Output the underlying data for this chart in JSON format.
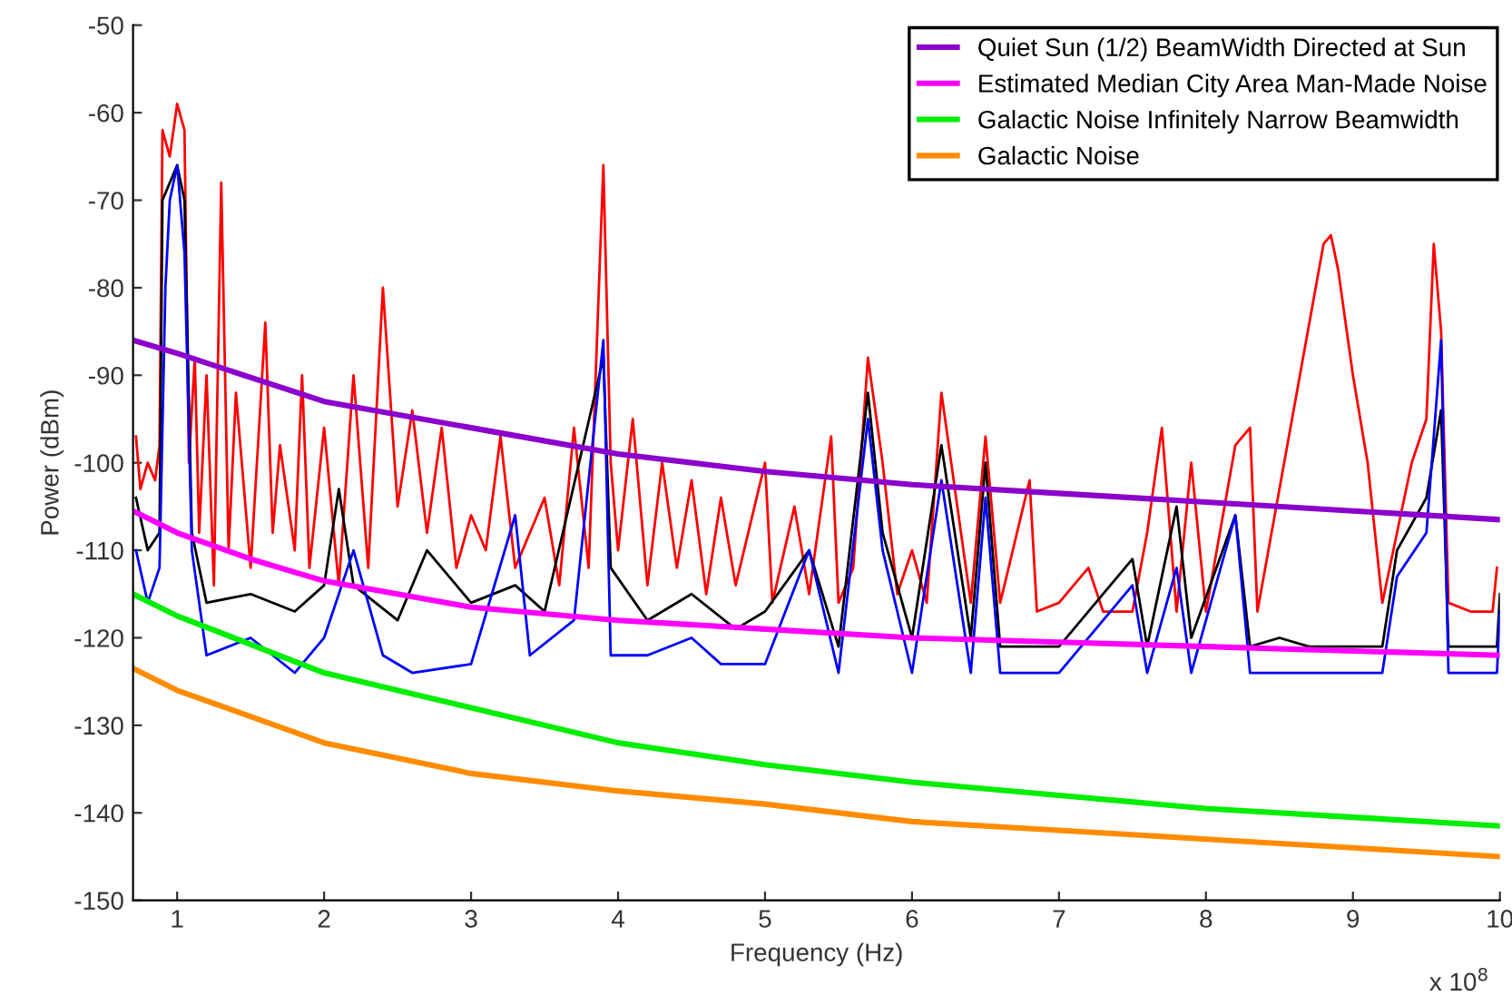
{
  "chart_data": {
    "type": "line",
    "xlabel": "Frequency (Hz)",
    "ylabel": "Power (dBm)",
    "xlim": [
      0.7,
      10
    ],
    "ylim": [
      -150,
      -50
    ],
    "xticks": [
      1,
      2,
      3,
      4,
      5,
      6,
      7,
      8,
      9,
      10
    ],
    "yticks": [
      -150,
      -140,
      -130,
      -120,
      -110,
      -100,
      -90,
      -80,
      -70,
      -60,
      -50
    ],
    "grid": false,
    "legend": "top right",
    "marker": "none",
    "line_style": "solid",
    "annotations": [
      "x 10$^{8}$"
    ],
    "series": [
      {
        "color": "#ff0000",
        "x": [
          0.72,
          0.75,
          0.8,
          0.85,
          0.88,
          0.9,
          0.95,
          1.0,
          1.05,
          1.08,
          1.12,
          1.15,
          1.2,
          1.25,
          1.3,
          1.35,
          1.4,
          1.5,
          1.6,
          1.65,
          1.7,
          1.8,
          1.85,
          1.9,
          2.0,
          2.1,
          2.2,
          2.3,
          2.4,
          2.5,
          2.6,
          2.7,
          2.8,
          2.9,
          3.0,
          3.1,
          3.2,
          3.3,
          3.5,
          3.6,
          3.7,
          3.8,
          3.9,
          3.95,
          4.0,
          4.1,
          4.2,
          4.3,
          4.4,
          4.5,
          4.6,
          4.7,
          4.8,
          5.0,
          5.05,
          5.2,
          5.3,
          5.45,
          5.5,
          5.6,
          5.7,
          5.8,
          5.9,
          6.0,
          6.1,
          6.2,
          6.3,
          6.4,
          6.5,
          6.6,
          6.8,
          6.85,
          7.0,
          7.2,
          7.3,
          7.5,
          7.6,
          7.7,
          7.8,
          7.9,
          8.0,
          8.2,
          8.3,
          8.35,
          8.8,
          8.85,
          8.9,
          9.0,
          9.1,
          9.2,
          9.3,
          9.4,
          9.5,
          9.55,
          9.6,
          9.65,
          9.8,
          9.95,
          9.98
        ],
        "values": [
          -97,
          -103,
          -100,
          -102,
          -98,
          -62,
          -65,
          -59,
          -62,
          -100,
          -88,
          -108,
          -90,
          -114,
          -68,
          -110,
          -92,
          -112,
          -84,
          -108,
          -98,
          -110,
          -90,
          -112,
          -96,
          -114,
          -90,
          -112,
          -80,
          -105,
          -94,
          -108,
          -96,
          -112,
          -106,
          -110,
          -97,
          -112,
          -104,
          -114,
          -96,
          -112,
          -66,
          -100,
          -110,
          -95,
          -114,
          -100,
          -112,
          -102,
          -115,
          -104,
          -114,
          -100,
          -116,
          -105,
          -115,
          -97,
          -116,
          -112,
          -88,
          -100,
          -115,
          -110,
          -116,
          -92,
          -104,
          -116,
          -97,
          -116,
          -102,
          -117,
          -116,
          -112,
          -117,
          -117,
          -108,
          -96,
          -117,
          -100,
          -117,
          -98,
          -96,
          -117,
          -75,
          -74,
          -78,
          -90,
          -100,
          -116,
          -108,
          -100,
          -95,
          -75,
          -85,
          -116,
          -117,
          -117,
          -112
        ]
      },
      {
        "color": "#000000",
        "x": [
          0.72,
          0.8,
          0.88,
          0.9,
          1.0,
          1.05,
          1.1,
          1.2,
          1.5,
          1.8,
          2.0,
          2.1,
          2.2,
          2.5,
          2.7,
          3.0,
          3.3,
          3.5,
          3.9,
          3.95,
          4.2,
          4.5,
          4.8,
          5.0,
          5.3,
          5.5,
          5.7,
          5.8,
          6.0,
          6.2,
          6.4,
          6.5,
          6.6,
          7.0,
          7.5,
          7.6,
          7.8,
          7.9,
          8.2,
          8.3,
          8.5,
          8.7,
          9.2,
          9.3,
          9.5,
          9.6,
          9.65,
          9.98,
          10.0
        ],
        "values": [
          -104,
          -110,
          -108,
          -70,
          -66,
          -70,
          -108,
          -116,
          -115,
          -117,
          -114,
          -103,
          -114,
          -118,
          -110,
          -116,
          -114,
          -117,
          -88,
          -112,
          -118,
          -115,
          -119,
          -117,
          -110,
          -121,
          -92,
          -108,
          -120,
          -98,
          -120,
          -100,
          -121,
          -121,
          -111,
          -121,
          -105,
          -120,
          -106,
          -121,
          -120,
          -121,
          -121,
          -110,
          -104,
          -94,
          -121,
          -121,
          -115
        ]
      },
      {
        "color": "#0000ff",
        "x": [
          0.72,
          0.8,
          0.88,
          0.92,
          0.95,
          1.0,
          1.05,
          1.1,
          1.2,
          1.5,
          1.8,
          2.0,
          2.2,
          2.4,
          2.6,
          3.0,
          3.3,
          3.4,
          3.7,
          3.9,
          3.95,
          4.2,
          4.5,
          4.7,
          5.0,
          5.3,
          5.5,
          5.7,
          5.8,
          6.0,
          6.2,
          6.4,
          6.5,
          6.6,
          7.0,
          7.5,
          7.6,
          7.8,
          7.9,
          8.2,
          8.3,
          9.2,
          9.3,
          9.5,
          9.6,
          9.65,
          9.98,
          10.0
        ],
        "values": [
          -110,
          -116,
          -112,
          -80,
          -70,
          -66,
          -76,
          -110,
          -122,
          -120,
          -124,
          -120,
          -110,
          -122,
          -124,
          -123,
          -106,
          -122,
          -118,
          -86,
          -122,
          -122,
          -120,
          -123,
          -123,
          -110,
          -124,
          -95,
          -110,
          -124,
          -102,
          -124,
          -104,
          -124,
          -124,
          -114,
          -124,
          -112,
          -124,
          -106,
          -124,
          -124,
          -113,
          -108,
          -86,
          -124,
          -124,
          -117
        ]
      },
      {
        "name": "Quiet Sun (1/2) BeamWidth Directed at Sun",
        "color": "#8b00cc",
        "x": [
          0.7,
          1,
          2,
          3,
          4,
          5,
          6,
          7,
          8,
          9,
          10
        ],
        "values": [
          -86,
          -87.5,
          -93,
          -96,
          -99,
          -101,
          -102.5,
          -103.5,
          -104.5,
          -105.5,
          -106.5
        ]
      },
      {
        "name": "Estimated Median City Area Man-Made Noise",
        "color": "#ff00ff",
        "x": [
          0.7,
          1,
          1.5,
          2,
          2.5,
          3,
          4,
          5,
          6,
          7,
          8,
          9,
          10
        ],
        "values": [
          -105.5,
          -108,
          -111,
          -113.5,
          -115,
          -116.5,
          -118,
          -119,
          -120,
          -120.5,
          -121,
          -121.5,
          -122
        ]
      },
      {
        "name": "Galactic Noise Infinitely Narrow Beamwidth",
        "color": "#00ee00",
        "x": [
          0.7,
          1,
          2,
          3,
          4,
          5,
          6,
          7,
          8,
          9,
          10
        ],
        "values": [
          -115,
          -117.5,
          -124,
          -128,
          -132,
          -134.5,
          -136.5,
          -138,
          -139.5,
          -140.5,
          -141.5
        ]
      },
      {
        "name": "Galactic Noise",
        "color": "#ff8c00",
        "x": [
          0.7,
          1,
          2,
          3,
          4,
          5,
          6,
          7,
          8,
          9,
          10
        ],
        "values": [
          -123.5,
          -126,
          -132,
          -135.5,
          -137.5,
          -139,
          -141,
          -142,
          -143,
          -144,
          -145
        ]
      }
    ]
  }
}
